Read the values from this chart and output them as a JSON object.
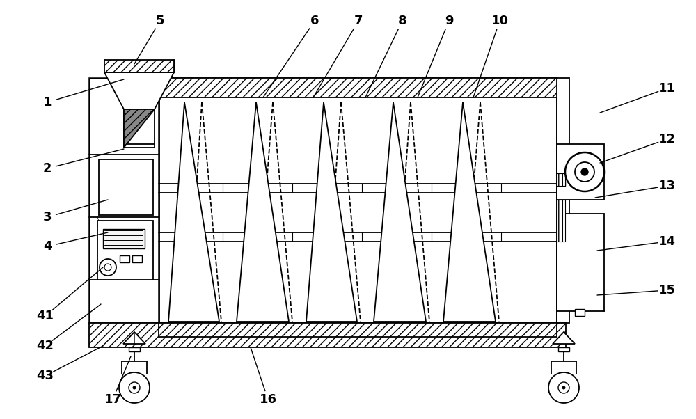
{
  "bg_color": "#ffffff",
  "line_color": "#000000",
  "fig_width": 10.0,
  "fig_height": 6.02,
  "label_fontsize": 13,
  "labels_info": [
    [
      "1",
      68,
      455,
      178,
      488
    ],
    [
      "2",
      68,
      360,
      178,
      388
    ],
    [
      "3",
      68,
      290,
      155,
      315
    ],
    [
      "4",
      68,
      248,
      155,
      268
    ],
    [
      "5",
      230,
      572,
      193,
      510
    ],
    [
      "6",
      452,
      572,
      378,
      462
    ],
    [
      "7",
      515,
      572,
      450,
      462
    ],
    [
      "8",
      578,
      572,
      525,
      462
    ],
    [
      "9",
      645,
      572,
      600,
      462
    ],
    [
      "10",
      718,
      572,
      680,
      462
    ],
    [
      "11",
      958,
      475,
      862,
      440
    ],
    [
      "12",
      958,
      402,
      862,
      368
    ],
    [
      "13",
      958,
      335,
      855,
      318
    ],
    [
      "14",
      958,
      255,
      858,
      242
    ],
    [
      "15",
      958,
      185,
      858,
      178
    ],
    [
      "16",
      385,
      28,
      360,
      103
    ],
    [
      "17",
      162,
      28,
      188,
      90
    ],
    [
      "41",
      65,
      148,
      148,
      218
    ],
    [
      "42",
      65,
      105,
      145,
      165
    ],
    [
      "43",
      65,
      62,
      148,
      105
    ]
  ]
}
